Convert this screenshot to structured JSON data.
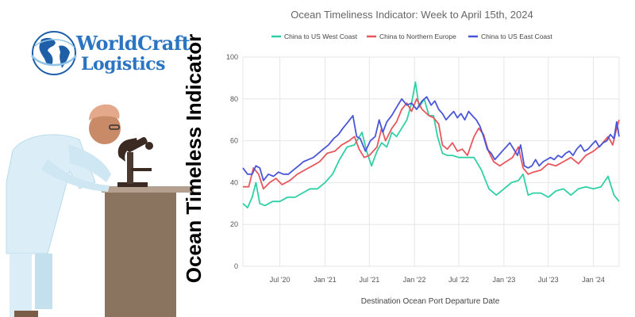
{
  "brand": {
    "line1": "WorldCraft",
    "line2": "Logistics",
    "color": "#2b74c2"
  },
  "side_title": "Ocean Timeless Indicator",
  "chart_data": {
    "type": "line",
    "title": "Ocean Timeliness Indicator: Week to April 15th, 2024",
    "xlabel": "Destination Ocean Port Departure Date",
    "ylabel": "",
    "ylim": [
      0,
      100
    ],
    "yticks": [
      0,
      20,
      40,
      60,
      80,
      100
    ],
    "xlim": [
      "2020-02-01",
      "2024-04-15"
    ],
    "xticks": [
      {
        "date": "2020-07-01",
        "label": "Jul '20"
      },
      {
        "date": "2021-01-01",
        "label": "Jan '21"
      },
      {
        "date": "2021-07-01",
        "label": "Jul '21"
      },
      {
        "date": "2022-01-01",
        "label": "Jan '22"
      },
      {
        "date": "2022-07-01",
        "label": "Jul '22"
      },
      {
        "date": "2023-01-01",
        "label": "Jan '23"
      },
      {
        "date": "2023-07-01",
        "label": "Jul '23"
      },
      {
        "date": "2024-01-01",
        "label": "Jan '24"
      }
    ],
    "grid": true,
    "legend_position": "top",
    "series": [
      {
        "name": "China to US West Coast",
        "color": "#2fd0a6",
        "points": [
          [
            "2020-02-01",
            30
          ],
          [
            "2020-02-20",
            28
          ],
          [
            "2020-03-10",
            33
          ],
          [
            "2020-03-25",
            40
          ],
          [
            "2020-04-10",
            30
          ],
          [
            "2020-05-01",
            29
          ],
          [
            "2020-06-01",
            31
          ],
          [
            "2020-07-01",
            31
          ],
          [
            "2020-08-01",
            33
          ],
          [
            "2020-09-01",
            33
          ],
          [
            "2020-10-01",
            35
          ],
          [
            "2020-11-01",
            37
          ],
          [
            "2020-12-01",
            37
          ],
          [
            "2021-01-01",
            40
          ],
          [
            "2021-02-01",
            44
          ],
          [
            "2021-03-01",
            51
          ],
          [
            "2021-04-01",
            57
          ],
          [
            "2021-05-01",
            58
          ],
          [
            "2021-06-01",
            64
          ],
          [
            "2021-06-20",
            55
          ],
          [
            "2021-07-10",
            48
          ],
          [
            "2021-08-01",
            55
          ],
          [
            "2021-08-20",
            59
          ],
          [
            "2021-09-10",
            57
          ],
          [
            "2021-10-01",
            64
          ],
          [
            "2021-10-20",
            62
          ],
          [
            "2021-11-10",
            66
          ],
          [
            "2021-12-01",
            70
          ],
          [
            "2021-12-20",
            78
          ],
          [
            "2022-01-05",
            88
          ],
          [
            "2022-01-20",
            76
          ],
          [
            "2022-02-10",
            80
          ],
          [
            "2022-03-01",
            72
          ],
          [
            "2022-03-20",
            72
          ],
          [
            "2022-04-05",
            62
          ],
          [
            "2022-04-25",
            54
          ],
          [
            "2022-05-15",
            53
          ],
          [
            "2022-06-05",
            53
          ],
          [
            "2022-07-01",
            52
          ],
          [
            "2022-08-01",
            52
          ],
          [
            "2022-09-01",
            52
          ],
          [
            "2022-10-01",
            46
          ],
          [
            "2022-11-01",
            37
          ],
          [
            "2022-12-01",
            34
          ],
          [
            "2023-01-01",
            37
          ],
          [
            "2023-02-01",
            40
          ],
          [
            "2023-03-01",
            41
          ],
          [
            "2023-03-20",
            44
          ],
          [
            "2023-04-10",
            34
          ],
          [
            "2023-05-01",
            35
          ],
          [
            "2023-06-01",
            35
          ],
          [
            "2023-07-01",
            33
          ],
          [
            "2023-08-01",
            36
          ],
          [
            "2023-09-01",
            37
          ],
          [
            "2023-10-01",
            34
          ],
          [
            "2023-11-01",
            37
          ],
          [
            "2023-12-01",
            38
          ],
          [
            "2024-01-01",
            37
          ],
          [
            "2024-02-01",
            38
          ],
          [
            "2024-03-01",
            43
          ],
          [
            "2024-03-25",
            34
          ],
          [
            "2024-04-15",
            31
          ]
        ]
      },
      {
        "name": "China to Northern Europe",
        "color": "#e8575d",
        "points": [
          [
            "2020-02-01",
            38
          ],
          [
            "2020-02-25",
            38
          ],
          [
            "2020-03-15",
            47
          ],
          [
            "2020-04-05",
            44
          ],
          [
            "2020-04-25",
            37
          ],
          [
            "2020-05-20",
            40
          ],
          [
            "2020-06-15",
            42
          ],
          [
            "2020-07-10",
            39
          ],
          [
            "2020-08-10",
            41
          ],
          [
            "2020-09-10",
            44
          ],
          [
            "2020-10-10",
            46
          ],
          [
            "2020-11-10",
            48
          ],
          [
            "2020-12-10",
            50
          ],
          [
            "2021-01-10",
            54
          ],
          [
            "2021-02-10",
            55
          ],
          [
            "2021-03-10",
            58
          ],
          [
            "2021-04-10",
            60
          ],
          [
            "2021-05-01",
            62
          ],
          [
            "2021-05-20",
            56
          ],
          [
            "2021-06-10",
            52
          ],
          [
            "2021-07-01",
            53
          ],
          [
            "2021-08-01",
            57
          ],
          [
            "2021-08-20",
            66
          ],
          [
            "2021-09-05",
            60
          ],
          [
            "2021-10-01",
            66
          ],
          [
            "2021-10-20",
            69
          ],
          [
            "2021-11-10",
            75
          ],
          [
            "2021-12-01",
            78
          ],
          [
            "2021-12-20",
            74
          ],
          [
            "2022-01-10",
            80
          ],
          [
            "2022-02-01",
            75
          ],
          [
            "2022-03-01",
            72
          ],
          [
            "2022-03-20",
            71
          ],
          [
            "2022-04-10",
            68
          ],
          [
            "2022-04-25",
            58
          ],
          [
            "2022-05-15",
            56
          ],
          [
            "2022-06-05",
            59
          ],
          [
            "2022-06-25",
            55
          ],
          [
            "2022-07-15",
            56
          ],
          [
            "2022-08-05",
            53
          ],
          [
            "2022-09-01",
            62
          ],
          [
            "2022-09-20",
            66
          ],
          [
            "2022-10-10",
            63
          ],
          [
            "2022-10-30",
            55
          ],
          [
            "2022-11-20",
            50
          ],
          [
            "2022-12-15",
            48
          ],
          [
            "2023-01-10",
            50
          ],
          [
            "2023-02-05",
            52
          ],
          [
            "2023-03-01",
            57
          ],
          [
            "2023-03-20",
            47
          ],
          [
            "2023-04-10",
            44
          ],
          [
            "2023-05-01",
            45
          ],
          [
            "2023-06-01",
            46
          ],
          [
            "2023-07-01",
            49
          ],
          [
            "2023-08-01",
            48
          ],
          [
            "2023-09-01",
            50
          ],
          [
            "2023-10-01",
            52
          ],
          [
            "2023-11-01",
            49
          ],
          [
            "2023-12-01",
            53
          ],
          [
            "2024-01-01",
            55
          ],
          [
            "2024-02-01",
            58
          ],
          [
            "2024-03-01",
            62
          ],
          [
            "2024-03-20",
            58
          ],
          [
            "2024-04-05",
            66
          ],
          [
            "2024-04-15",
            70
          ]
        ]
      },
      {
        "name": "China to US East Coast",
        "color": "#4a56d8",
        "points": [
          [
            "2020-02-01",
            47
          ],
          [
            "2020-02-20",
            44
          ],
          [
            "2020-03-10",
            44
          ],
          [
            "2020-03-25",
            48
          ],
          [
            "2020-04-10",
            47
          ],
          [
            "2020-04-25",
            41
          ],
          [
            "2020-05-15",
            44
          ],
          [
            "2020-06-05",
            43
          ],
          [
            "2020-06-25",
            45
          ],
          [
            "2020-07-15",
            44
          ],
          [
            "2020-08-05",
            44
          ],
          [
            "2020-08-25",
            46
          ],
          [
            "2020-09-15",
            48
          ],
          [
            "2020-10-05",
            50
          ],
          [
            "2020-10-25",
            51
          ],
          [
            "2020-11-15",
            52
          ],
          [
            "2020-12-05",
            54
          ],
          [
            "2020-12-25",
            56
          ],
          [
            "2021-01-15",
            58
          ],
          [
            "2021-02-05",
            61
          ],
          [
            "2021-02-25",
            63
          ],
          [
            "2021-03-15",
            66
          ],
          [
            "2021-04-05",
            69
          ],
          [
            "2021-04-25",
            72
          ],
          [
            "2021-05-10",
            62
          ],
          [
            "2021-05-25",
            61
          ],
          [
            "2021-06-15",
            55
          ],
          [
            "2021-07-05",
            60
          ],
          [
            "2021-07-25",
            62
          ],
          [
            "2021-08-10",
            70
          ],
          [
            "2021-08-25",
            64
          ],
          [
            "2021-09-10",
            69
          ],
          [
            "2021-09-30",
            72
          ],
          [
            "2021-10-20",
            76
          ],
          [
            "2021-11-10",
            80
          ],
          [
            "2021-12-01",
            77
          ],
          [
            "2021-12-20",
            78
          ],
          [
            "2022-01-10",
            75
          ],
          [
            "2022-02-01",
            79
          ],
          [
            "2022-02-20",
            81
          ],
          [
            "2022-03-10",
            77
          ],
          [
            "2022-03-25",
            79
          ],
          [
            "2022-04-10",
            75
          ],
          [
            "2022-04-25",
            73
          ],
          [
            "2022-05-10",
            70
          ],
          [
            "2022-05-25",
            72
          ],
          [
            "2022-06-10",
            74
          ],
          [
            "2022-06-25",
            71
          ],
          [
            "2022-07-10",
            73
          ],
          [
            "2022-07-25",
            70
          ],
          [
            "2022-08-10",
            74
          ],
          [
            "2022-08-25",
            72
          ],
          [
            "2022-09-10",
            70
          ],
          [
            "2022-09-25",
            67
          ],
          [
            "2022-10-10",
            62
          ],
          [
            "2022-10-25",
            56
          ],
          [
            "2022-11-10",
            54
          ],
          [
            "2022-11-25",
            51
          ],
          [
            "2022-12-10",
            53
          ],
          [
            "2022-12-25",
            55
          ],
          [
            "2023-01-10",
            57
          ],
          [
            "2023-01-25",
            59
          ],
          [
            "2023-02-10",
            56
          ],
          [
            "2023-02-25",
            53
          ],
          [
            "2023-03-10",
            58
          ],
          [
            "2023-03-25",
            48
          ],
          [
            "2023-04-10",
            47
          ],
          [
            "2023-04-25",
            48
          ],
          [
            "2023-05-10",
            51
          ],
          [
            "2023-05-25",
            48
          ],
          [
            "2023-06-10",
            50
          ],
          [
            "2023-06-25",
            51
          ],
          [
            "2023-07-10",
            52
          ],
          [
            "2023-07-25",
            51
          ],
          [
            "2023-08-10",
            53
          ],
          [
            "2023-08-25",
            52
          ],
          [
            "2023-09-10",
            54
          ],
          [
            "2023-09-25",
            55
          ],
          [
            "2023-10-10",
            53
          ],
          [
            "2023-10-25",
            56
          ],
          [
            "2023-11-10",
            58
          ],
          [
            "2023-11-25",
            55
          ],
          [
            "2023-12-10",
            56
          ],
          [
            "2023-12-25",
            58
          ],
          [
            "2024-01-10",
            60
          ],
          [
            "2024-01-25",
            57
          ],
          [
            "2024-02-10",
            59
          ],
          [
            "2024-02-25",
            60
          ],
          [
            "2024-03-10",
            63
          ],
          [
            "2024-03-25",
            61
          ],
          [
            "2024-04-05",
            69
          ],
          [
            "2024-04-15",
            62
          ]
        ]
      }
    ]
  }
}
